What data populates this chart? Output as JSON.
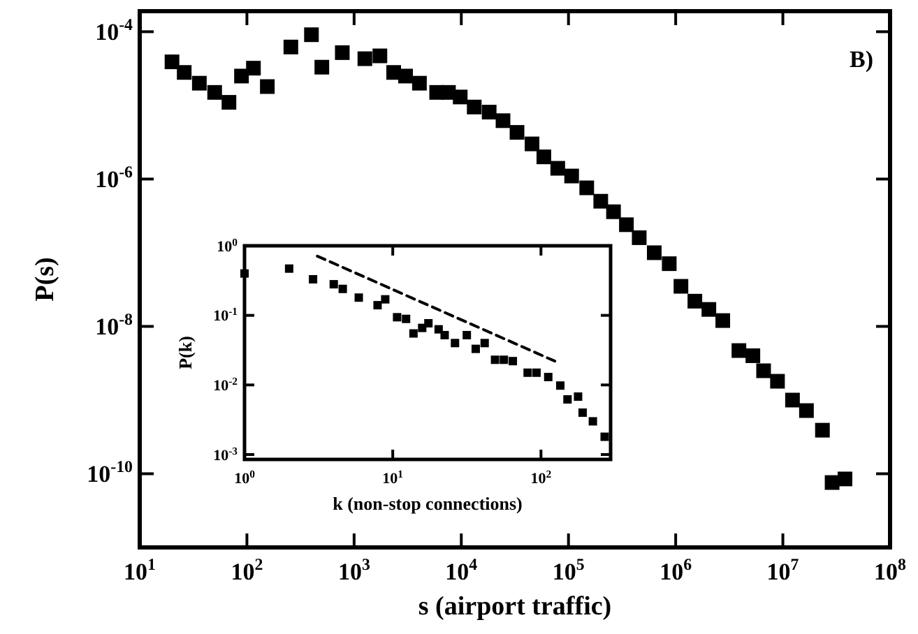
{
  "chart_data": [
    {
      "type": "scatter",
      "xlabel": "s (airport traffic)",
      "ylabel": "P(s)",
      "annotations": [
        "B)"
      ],
      "log": "xy",
      "marker": "square",
      "xlim": [
        10,
        100000000
      ],
      "ylim": [
        1e-11,
        0.00019
      ],
      "xticks": [
        {
          "value": 10,
          "label": "10$^{1}$"
        },
        {
          "value": 100,
          "label": "10$^{2}$"
        },
        {
          "value": 1000,
          "label": "10$^{3}$"
        },
        {
          "value": 10000,
          "label": "10$^{4}$"
        },
        {
          "value": 100000,
          "label": "10$^{5}$"
        },
        {
          "value": 1000000,
          "label": "10$^{6}$"
        },
        {
          "value": 10000000,
          "label": "10$^{7}$"
        },
        {
          "value": 100000000,
          "label": "10$^{8}$"
        }
      ],
      "yticks": [
        {
          "value": 0.0001,
          "label": "10$^{-4}$"
        },
        {
          "value": 1e-06,
          "label": "10$^{-6}$"
        },
        {
          "value": 1e-08,
          "label": "10$^{-8}$"
        },
        {
          "value": 1e-10,
          "label": "10$^{-10}$"
        }
      ],
      "series": [
        {
          "color": "#000000",
          "x": [
            20,
            26,
            36,
            50,
            68,
            89,
            115,
            155,
            257,
            400,
            500,
            776,
            1260,
            1740,
            2340,
            3020,
            4070,
            5890,
            7590,
            9770,
            13200,
            18200,
            24500,
            33100,
            45700,
            58900,
            79400,
            107000,
            148000,
            200000,
            263000,
            347000,
            457000,
            631000,
            871000,
            1120000,
            1510000,
            2040000,
            2750000,
            3890000,
            5250000,
            6610000,
            8910000,
            12300000,
            16600000,
            23400000,
            28800000,
            38000000
          ],
          "values": [
            3.9e-05,
            2.8e-05,
            2e-05,
            1.5e-05,
            1.1e-05,
            2.5e-05,
            3.2e-05,
            1.8e-05,
            6.2e-05,
            9.1e-05,
            3.3e-05,
            5.2e-05,
            4.3e-05,
            4.7e-05,
            2.8e-05,
            2.5e-05,
            2e-05,
            1.5e-05,
            1.5e-05,
            1.3e-05,
            9.5e-06,
            8.1e-06,
            6.2e-06,
            4.3e-06,
            3e-06,
            2e-06,
            1.4e-06,
            1.1e-06,
            7.6e-07,
            5e-07,
            3.6e-07,
            2.4e-07,
            1.6e-07,
            1e-07,
            7.1e-08,
            3.5e-08,
            2.2e-08,
            1.7e-08,
            1.2e-08,
            4.7e-09,
            4e-09,
            2.5e-09,
            1.8e-09,
            1e-09,
            7.2e-10,
            3.9e-10,
            7.6e-11,
            8.5e-11
          ]
        }
      ]
    },
    {
      "type": "scatter",
      "xlabel": "k (non-stop connections)",
      "ylabel": "P(k)",
      "log": "xy",
      "xlim": [
        1,
        295
      ],
      "ylim": [
        0.00085,
        1
      ],
      "xticks": [
        {
          "value": 1,
          "label": "10$^{0}$"
        },
        {
          "value": 10,
          "label": "10$^{1}$"
        },
        {
          "value": 100,
          "label": "10$^{2}$"
        }
      ],
      "yticks": [
        {
          "value": 1,
          "label": "10$^{0}$"
        },
        {
          "value": 0.1,
          "label": "10$^{-1}$"
        },
        {
          "value": 0.01,
          "label": "10$^{-2}$"
        },
        {
          "value": 0.001,
          "label": "10$^{-3}$"
        }
      ],
      "series": [
        {
          "marker": "square",
          "color": "#000000",
          "x": [
            1,
            2.0,
            2.9,
            4.0,
            4.6,
            5.9,
            7.9,
            8.9,
            10.7,
            12.3,
            13.8,
            15.8,
            17.4,
            20.4,
            22.4,
            26.3,
            31.6,
            36.3,
            41.7,
            49.0,
            56.2,
            64.6,
            81.3,
            93.3,
            112,
            135,
            151,
            178,
            191,
            224,
            269
          ],
          "values": [
            0.4,
            0.47,
            0.33,
            0.28,
            0.24,
            0.18,
            0.14,
            0.17,
            0.094,
            0.089,
            0.055,
            0.066,
            0.077,
            0.063,
            0.052,
            0.04,
            0.052,
            0.033,
            0.04,
            0.023,
            0.023,
            0.022,
            0.015,
            0.015,
            0.013,
            0.0098,
            0.0062,
            0.0068,
            0.004,
            0.003,
            0.0018
          ]
        },
        {
          "type": "line",
          "line_style": "dashed",
          "color": "#000000",
          "x": [
            3.1,
            124
          ],
          "values": [
            0.71,
            0.022
          ]
        }
      ]
    }
  ]
}
